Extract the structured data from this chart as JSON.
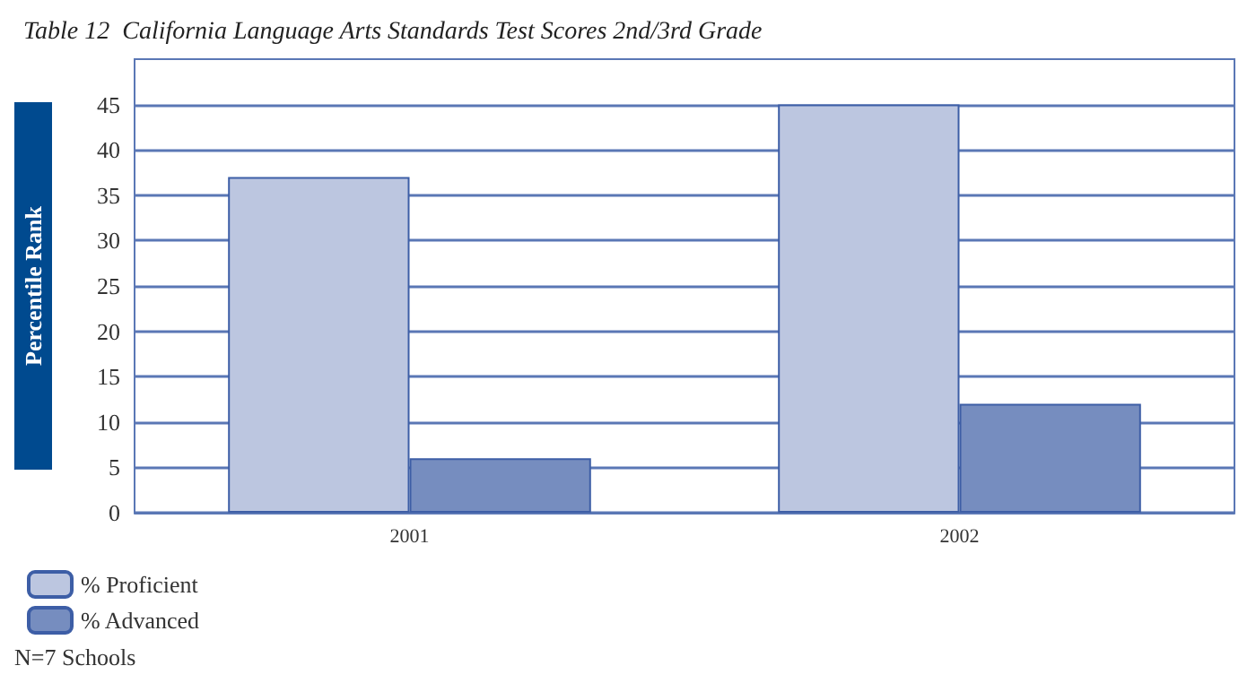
{
  "chart_data": {
    "type": "bar",
    "title": "Table 12  California Language Arts Standards Test Scores 2nd/3rd Grade",
    "ylabel": "Percentile Rank",
    "categories": [
      "2001",
      "2002"
    ],
    "series": [
      {
        "name": "% Proficient",
        "color": "#bcc6e0",
        "values": [
          37,
          45
        ]
      },
      {
        "name": "% Advanced",
        "color": "#768dbf",
        "values": [
          6,
          12
        ]
      }
    ],
    "ylim": [
      0,
      50
    ],
    "yticks": [
      0,
      5,
      10,
      15,
      20,
      25,
      30,
      35,
      40,
      45
    ],
    "grid": "y",
    "legend": "bottom left",
    "annotations": [
      "N=7 Schools"
    ]
  }
}
